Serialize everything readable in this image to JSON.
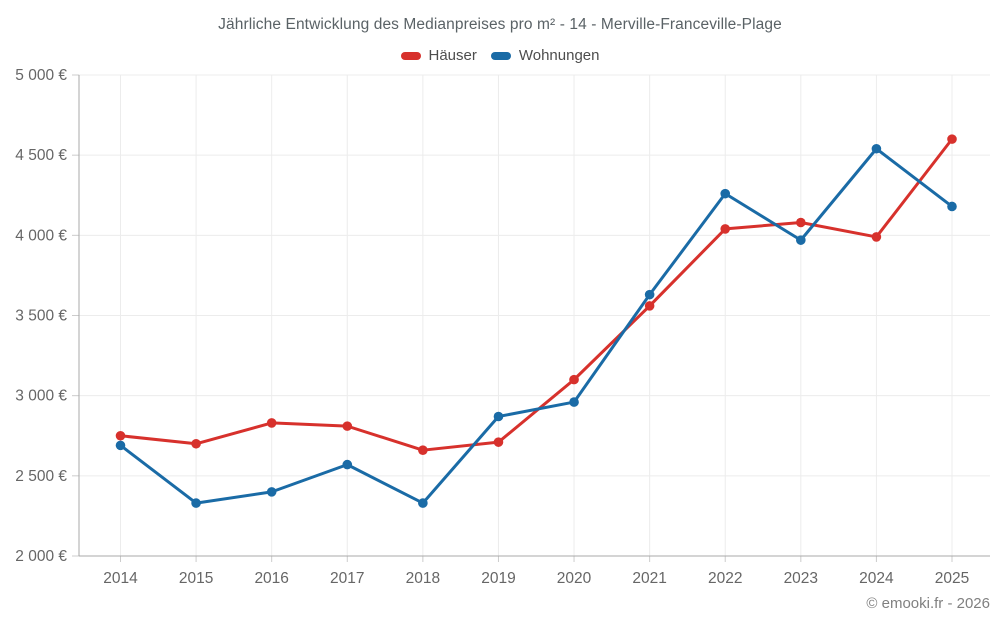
{
  "page": {
    "background": "#ffffff"
  },
  "header": {
    "title": "Jährliche Entwicklung des Medianpreises pro m² - 14 - Merville-Franceville-Plage"
  },
  "chart_data": {
    "type": "line",
    "title": "Jährliche Entwicklung des Medianpreises pro m² - 14 - Merville-Franceville-Plage",
    "xlabel": "",
    "ylabel": "",
    "x": [
      2014,
      2015,
      2016,
      2017,
      2018,
      2019,
      2020,
      2021,
      2022,
      2023,
      2024,
      2025
    ],
    "x_tick_labels": [
      "2014",
      "2015",
      "2016",
      "2017",
      "2018",
      "2019",
      "2020",
      "2021",
      "2022",
      "2023",
      "2024",
      "2025"
    ],
    "y_ticks": [
      2000,
      2500,
      3000,
      3500,
      4000,
      4500,
      5000
    ],
    "y_tick_labels": [
      "2 000 €",
      "2 500 €",
      "3 000 €",
      "3 500 €",
      "4 000 €",
      "4 500 €",
      "5 000 €"
    ],
    "ylim": [
      2000,
      5000
    ],
    "grid": true,
    "legend_position": "top",
    "currency": "€",
    "series": [
      {
        "name": "Häuser",
        "color": "#d7312c",
        "values": [
          2750,
          2700,
          2830,
          2810,
          2660,
          2710,
          3100,
          3560,
          4040,
          4080,
          3990,
          4600
        ]
      },
      {
        "name": "Wohnungen",
        "color": "#1a6ba6",
        "values": [
          2690,
          2330,
          2400,
          2570,
          2330,
          2870,
          2960,
          3630,
          4260,
          3970,
          4540,
          4180
        ]
      }
    ],
    "style": {
      "grid_color": "#ececec",
      "axis_color": "#a9a9a9",
      "tick_color": "#cccccc",
      "tick_label_color": "#666666"
    }
  },
  "footer": {
    "credit": "© emooki.fr - 2026"
  }
}
